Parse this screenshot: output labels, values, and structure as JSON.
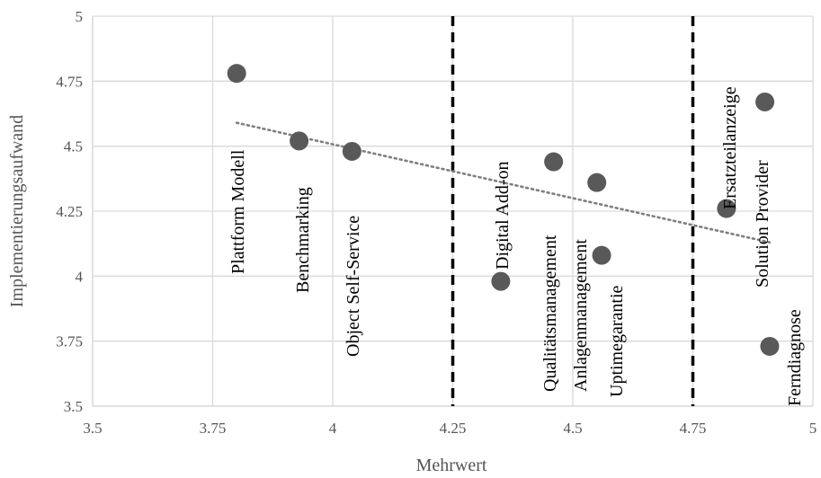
{
  "chart_data": {
    "type": "scatter",
    "title": "",
    "xlabel": "Mehrwert",
    "ylabel": "Implementierungsaufwand",
    "xlim": [
      3.5,
      5
    ],
    "ylim": [
      3.5,
      5
    ],
    "x_ticks": [
      "3.5",
      "3.75",
      "4",
      "4.25",
      "4.5",
      "4.75",
      "5"
    ],
    "y_ticks": [
      "3.5",
      "3.75",
      "4",
      "4.25",
      "4.5",
      "4.75",
      "5"
    ],
    "grid": true,
    "legend": "none",
    "colors": {
      "point": "#595959",
      "trendline": "#7f7f7f",
      "grid": "#d9d9d9",
      "divider": "#000000",
      "axis_text": "#555555",
      "label_text": "#000000"
    },
    "points": [
      {
        "label": "Plattform Modell",
        "x": 3.8,
        "y": 4.78
      },
      {
        "label": "Benchmarking",
        "x": 3.93,
        "y": 4.52
      },
      {
        "label": "Object Self-Service",
        "x": 4.04,
        "y": 4.48
      },
      {
        "label": "Digital Add-on",
        "x": 4.35,
        "y": 3.98
      },
      {
        "label": "Qualitätsmanagement",
        "x": 4.46,
        "y": 4.44
      },
      {
        "label": "Anlagenmanagement",
        "x": 4.55,
        "y": 4.36
      },
      {
        "label": "Uptimegarantie",
        "x": 4.56,
        "y": 4.08
      },
      {
        "label": "Ersatzteilanzeige",
        "x": 4.82,
        "y": 4.26
      },
      {
        "label": "Solution Provider",
        "x": 4.9,
        "y": 4.67
      },
      {
        "label": "Ferndiagnose",
        "x": 4.91,
        "y": 3.73
      }
    ],
    "trendline": {
      "style": "dotted",
      "x": [
        3.8,
        4.91
      ],
      "y": [
        4.59,
        4.13
      ]
    },
    "vertical_dividers": [
      {
        "x": 4.25,
        "style": "dashed"
      },
      {
        "x": 4.75,
        "style": "dashed"
      }
    ]
  }
}
